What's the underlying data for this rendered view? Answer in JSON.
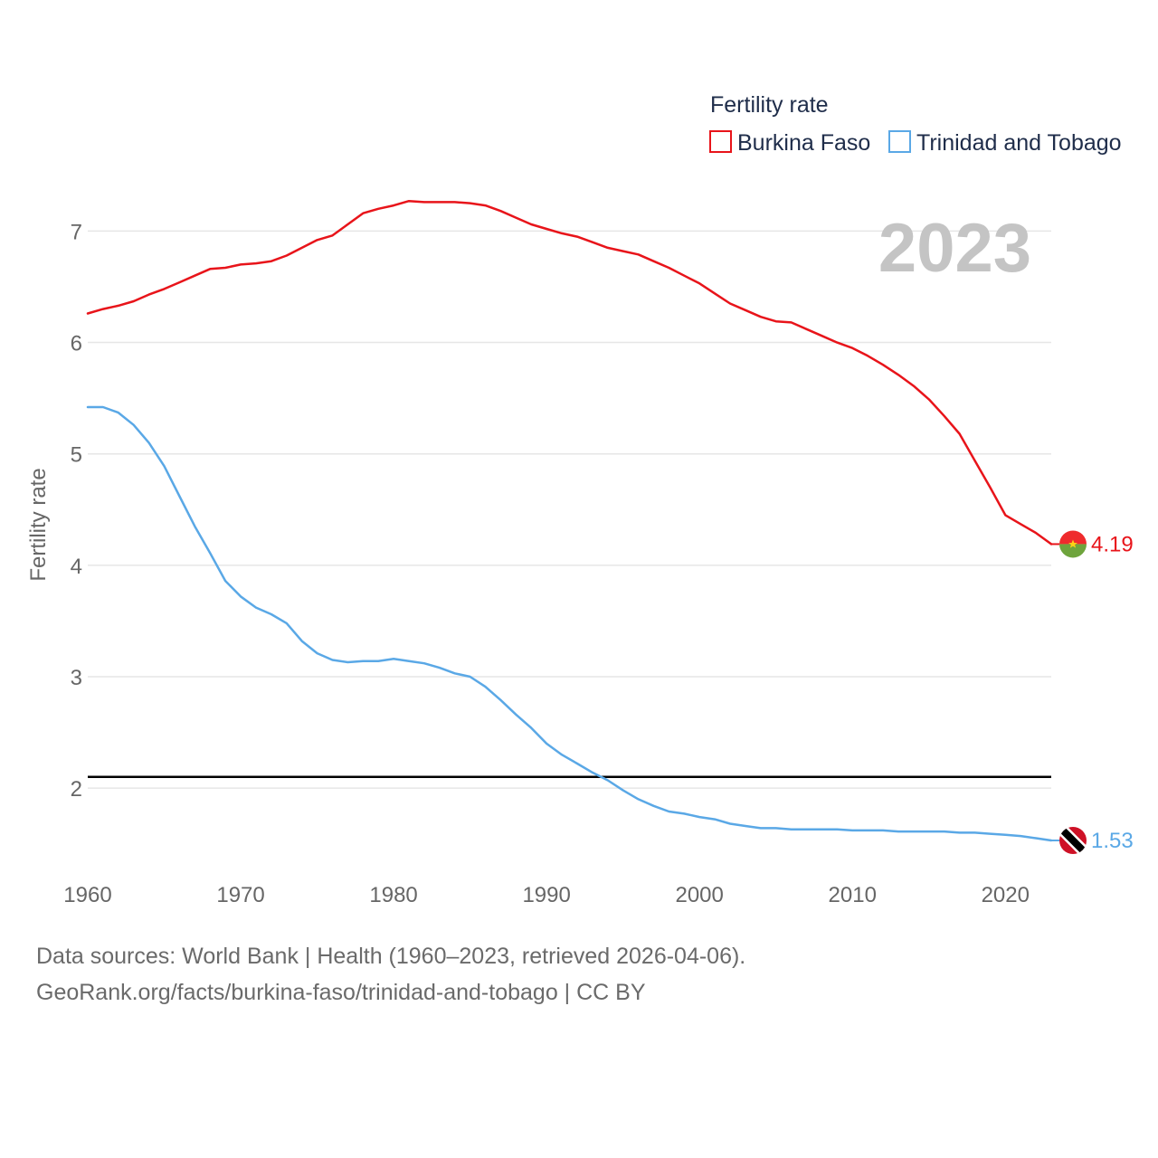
{
  "colors": {
    "burkina": "#e8141a",
    "trinidad": "#5aa8e6",
    "grid": "#e6e6e6",
    "reference": "#000000"
  },
  "chart_data": {
    "type": "line",
    "title": "",
    "year_label": "2023",
    "xlabel": "",
    "ylabel": "Fertility rate",
    "xlim": [
      1960,
      2023
    ],
    "ylim": [
      1.4,
      7.45
    ],
    "x_ticks": [
      1960,
      1970,
      1980,
      1990,
      2000,
      2010,
      2020
    ],
    "y_ticks": [
      2,
      3,
      4,
      5,
      6,
      7
    ],
    "grid": true,
    "legend": {
      "title": "Fertility rate",
      "placement": "top-right"
    },
    "reference_line": {
      "y": 2.1
    },
    "x": [
      1960,
      1961,
      1962,
      1963,
      1964,
      1965,
      1966,
      1967,
      1968,
      1969,
      1970,
      1971,
      1972,
      1973,
      1974,
      1975,
      1976,
      1977,
      1978,
      1979,
      1980,
      1981,
      1982,
      1983,
      1984,
      1985,
      1986,
      1987,
      1988,
      1989,
      1990,
      1991,
      1992,
      1993,
      1994,
      1995,
      1996,
      1997,
      1998,
      1999,
      2000,
      2001,
      2002,
      2003,
      2004,
      2005,
      2006,
      2007,
      2008,
      2009,
      2010,
      2011,
      2012,
      2013,
      2014,
      2015,
      2016,
      2017,
      2018,
      2019,
      2020,
      2021,
      2022,
      2023
    ],
    "series": [
      {
        "name": "Burkina Faso",
        "color_key": "burkina",
        "end_label": "4.19",
        "flag": "burkina-faso-flag-icon",
        "values": [
          6.26,
          6.3,
          6.33,
          6.37,
          6.43,
          6.48,
          6.54,
          6.6,
          6.66,
          6.67,
          6.7,
          6.71,
          6.73,
          6.78,
          6.85,
          6.92,
          6.96,
          7.06,
          7.16,
          7.2,
          7.23,
          7.27,
          7.26,
          7.26,
          7.26,
          7.25,
          7.23,
          7.18,
          7.12,
          7.06,
          7.02,
          6.98,
          6.95,
          6.9,
          6.85,
          6.82,
          6.79,
          6.73,
          6.67,
          6.6,
          6.53,
          6.44,
          6.35,
          6.29,
          6.23,
          6.19,
          6.18,
          6.12,
          6.06,
          6.0,
          5.95,
          5.88,
          5.8,
          5.71,
          5.61,
          5.49,
          5.34,
          5.18,
          4.94,
          4.7,
          4.45,
          4.37,
          4.29,
          4.19
        ]
      },
      {
        "name": "Trinidad and Tobago",
        "color_key": "trinidad",
        "end_label": "1.53",
        "flag": "trinidad-and-tobago-flag-icon",
        "values": [
          5.42,
          5.42,
          5.37,
          5.26,
          5.1,
          4.89,
          4.62,
          4.35,
          4.11,
          3.86,
          3.72,
          3.62,
          3.56,
          3.48,
          3.32,
          3.21,
          3.15,
          3.13,
          3.14,
          3.14,
          3.16,
          3.14,
          3.12,
          3.08,
          3.03,
          3.0,
          2.91,
          2.79,
          2.66,
          2.54,
          2.4,
          2.3,
          2.22,
          2.14,
          2.07,
          1.98,
          1.9,
          1.84,
          1.79,
          1.77,
          1.74,
          1.72,
          1.68,
          1.66,
          1.64,
          1.64,
          1.63,
          1.63,
          1.63,
          1.63,
          1.62,
          1.62,
          1.62,
          1.61,
          1.61,
          1.61,
          1.61,
          1.6,
          1.6,
          1.59,
          1.58,
          1.57,
          1.55,
          1.53
        ]
      }
    ]
  },
  "footer": {
    "line1": "Data sources: World Bank | Health (1960–2023, retrieved 2026-04-06).",
    "line2": "GeoRank.org/facts/burkina-faso/trinidad-and-tobago | CC BY"
  }
}
